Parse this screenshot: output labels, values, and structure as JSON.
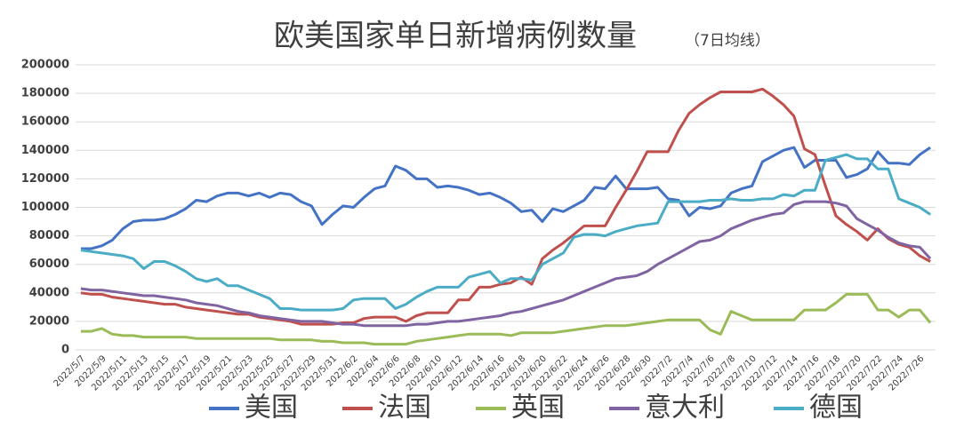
{
  "chart_data": {
    "type": "line",
    "title": "欧美国家单日新增病例数量",
    "subtitle": "（7日均线）",
    "categories": [
      "2022/5/7",
      null,
      "2022/5/9",
      null,
      "2022/5/11",
      null,
      "2022/5/13",
      null,
      "2022/5/15",
      null,
      "2022/5/17",
      null,
      "2022/5/19",
      null,
      "2022/5/21",
      null,
      "2022/5/23",
      null,
      "2022/5/25",
      null,
      "2022/5/27",
      null,
      "2022/5/29",
      null,
      "2022/5/31",
      null,
      "2022/6/2",
      null,
      "2022/6/4",
      null,
      "2022/6/6",
      null,
      "2022/6/8",
      null,
      "2022/6/10",
      null,
      "2022/6/12",
      null,
      "2022/6/14",
      null,
      "2022/6/16",
      null,
      "2022/6/18",
      null,
      "2022/6/20",
      null,
      "2022/6/22",
      null,
      "2022/6/24",
      null,
      "2022/6/26",
      null,
      "2022/6/28",
      null,
      "2022/6/30",
      null,
      "2022/7/2",
      null,
      "2022/7/4",
      null,
      "2022/7/6",
      null,
      "2022/7/8",
      null,
      "2022/7/10",
      null,
      "2022/7/12",
      null,
      "2022/7/14",
      null,
      "2022/7/16",
      null,
      "2022/7/18",
      null,
      "2022/7/20",
      null,
      "2022/7/22",
      null,
      "2022/7/24",
      null,
      "2022/7/26",
      null
    ],
    "series": [
      {
        "name": "美国",
        "color": "#4472c4",
        "values": [
          71000,
          71000,
          73000,
          77000,
          85000,
          90000,
          91000,
          91000,
          92000,
          95000,
          99000,
          105000,
          104000,
          108000,
          110000,
          110000,
          108000,
          110000,
          107000,
          110000,
          109000,
          104000,
          101000,
          88000,
          95000,
          101000,
          100000,
          107000,
          113000,
          115000,
          129000,
          126000,
          120000,
          120000,
          114000,
          115000,
          114000,
          112000,
          109000,
          110000,
          107000,
          103000,
          97000,
          98000,
          90000,
          99000,
          97000,
          101000,
          105000,
          114000,
          113000,
          122000,
          113000,
          113000,
          113000,
          114000,
          106000,
          105000,
          94000,
          100000,
          99000,
          101000,
          110000,
          113000,
          115000,
          132000,
          136000,
          140000,
          142000,
          128000,
          133000,
          133000,
          133000,
          121000,
          123000,
          127000,
          139000,
          131000,
          131000,
          130000,
          137000,
          142000
        ]
      },
      {
        "name": "法国",
        "color": "#c0504d",
        "values": [
          40000,
          39000,
          39000,
          37000,
          36000,
          35000,
          34000,
          33000,
          32000,
          32000,
          30000,
          29000,
          28000,
          27000,
          26000,
          25000,
          25000,
          23000,
          22000,
          21000,
          20000,
          18000,
          18000,
          18000,
          18000,
          19000,
          19000,
          22000,
          23000,
          23000,
          23000,
          20000,
          24000,
          26000,
          26000,
          26000,
          35000,
          35000,
          44000,
          44000,
          46000,
          47000,
          51000,
          46000,
          64000,
          70000,
          75000,
          81000,
          87000,
          87000,
          87000,
          100000,
          112000,
          125000,
          139000,
          139000,
          139000,
          154000,
          166000,
          172000,
          177000,
          181000,
          181000,
          181000,
          181000,
          183000,
          178000,
          172000,
          164000,
          141000,
          137000,
          115000,
          94000,
          88000,
          83000,
          77000,
          85000,
          78000,
          74000,
          72000,
          66000,
          62000
        ]
      },
      {
        "name": "英国",
        "color": "#9bbb59",
        "values": [
          13000,
          13000,
          15000,
          11000,
          10000,
          10000,
          9000,
          9000,
          9000,
          9000,
          9000,
          8000,
          8000,
          8000,
          8000,
          8000,
          8000,
          8000,
          8000,
          7000,
          7000,
          7000,
          7000,
          6000,
          6000,
          5000,
          5000,
          5000,
          4000,
          4000,
          4000,
          4000,
          6000,
          7000,
          8000,
          9000,
          10000,
          11000,
          11000,
          11000,
          11000,
          10000,
          12000,
          12000,
          12000,
          12000,
          13000,
          14000,
          15000,
          16000,
          17000,
          17000,
          17000,
          18000,
          19000,
          20000,
          21000,
          21000,
          21000,
          21000,
          14000,
          11000,
          27000,
          24000,
          21000,
          21000,
          21000,
          21000,
          21000,
          28000,
          28000,
          28000,
          33000,
          39000,
          39000,
          39000,
          28000,
          28000,
          23000,
          28000,
          28000,
          19000
        ]
      },
      {
        "name": "意大利",
        "color": "#8064a2",
        "values": [
          43000,
          42000,
          42000,
          41000,
          40000,
          39000,
          38000,
          38000,
          37000,
          36000,
          35000,
          33000,
          32000,
          31000,
          29000,
          27000,
          26000,
          24000,
          23000,
          22000,
          21000,
          20000,
          20000,
          20000,
          19000,
          18000,
          18000,
          17000,
          17000,
          17000,
          17000,
          17000,
          18000,
          18000,
          19000,
          20000,
          20000,
          21000,
          22000,
          23000,
          24000,
          26000,
          27000,
          29000,
          31000,
          33000,
          35000,
          38000,
          41000,
          44000,
          47000,
          50000,
          51000,
          52000,
          55000,
          60000,
          64000,
          68000,
          72000,
          76000,
          77000,
          80000,
          85000,
          88000,
          91000,
          93000,
          95000,
          96000,
          102000,
          104000,
          104000,
          104000,
          103000,
          101000,
          92000,
          88000,
          84000,
          79000,
          75000,
          73000,
          72000,
          64000
        ]
      },
      {
        "name": "德国",
        "color": "#4bacc6",
        "values": [
          70000,
          69000,
          68000,
          67000,
          66000,
          64000,
          57000,
          62000,
          62000,
          59000,
          55000,
          50000,
          48000,
          50000,
          45000,
          45000,
          42000,
          39000,
          36000,
          29000,
          29000,
          28000,
          28000,
          28000,
          28000,
          29000,
          35000,
          36000,
          36000,
          36000,
          29000,
          32000,
          37000,
          41000,
          44000,
          44000,
          44000,
          51000,
          53000,
          55000,
          47000,
          50000,
          50000,
          49000,
          60000,
          64000,
          68000,
          79000,
          81000,
          81000,
          80000,
          83000,
          85000,
          87000,
          88000,
          89000,
          104000,
          104000,
          104000,
          104000,
          105000,
          105000,
          106000,
          105000,
          105000,
          106000,
          106000,
          109000,
          108000,
          112000,
          112000,
          133000,
          135000,
          137000,
          134000,
          134000,
          127000,
          127000,
          106000,
          103000,
          100000,
          95000
        ]
      }
    ],
    "ylim": [
      0,
      200000
    ],
    "yticks": [
      0,
      20000,
      40000,
      60000,
      80000,
      100000,
      120000,
      140000,
      160000,
      180000,
      200000
    ],
    "grid": true
  }
}
